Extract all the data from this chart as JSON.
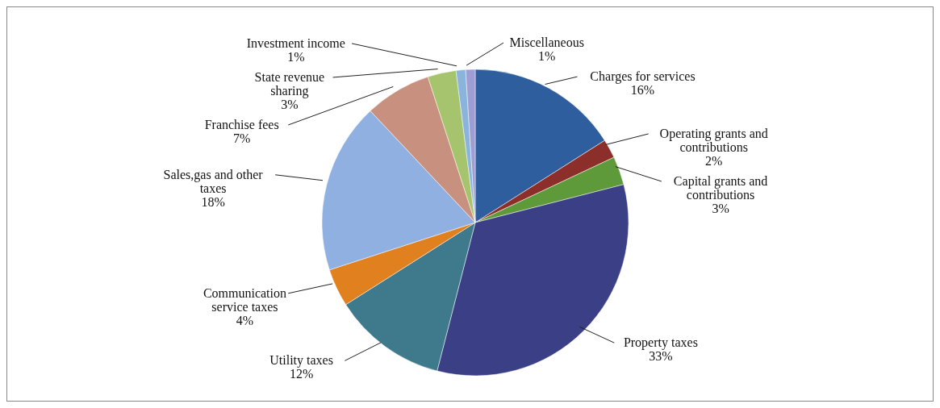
{
  "chart_data": {
    "type": "pie",
    "categories": [
      "Charges for services",
      "Operating grants and contributions",
      "Capital grants and contributions",
      "Property taxes",
      "Utility taxes",
      "Communication service taxes",
      "Sales,gas and other taxes",
      "Franchise fees",
      "State revenue sharing",
      "Investment income",
      "Miscellaneous"
    ],
    "values": [
      16,
      2,
      3,
      33,
      12,
      4,
      18,
      7,
      3,
      1,
      1
    ],
    "value_labels": [
      "16%",
      "2%",
      "3%",
      "33%",
      "12%",
      "4%",
      "18%",
      "7%",
      "3%",
      "1%",
      "1%"
    ],
    "colors": [
      "#2f5e9e",
      "#8c2f2b",
      "#5f9a3a",
      "#3a3f86",
      "#3e7a8c",
      "#e0801f",
      "#8fb0e0",
      "#c8907e",
      "#a6c46e",
      "#8ab4dc",
      "#9e9ed4"
    ]
  }
}
